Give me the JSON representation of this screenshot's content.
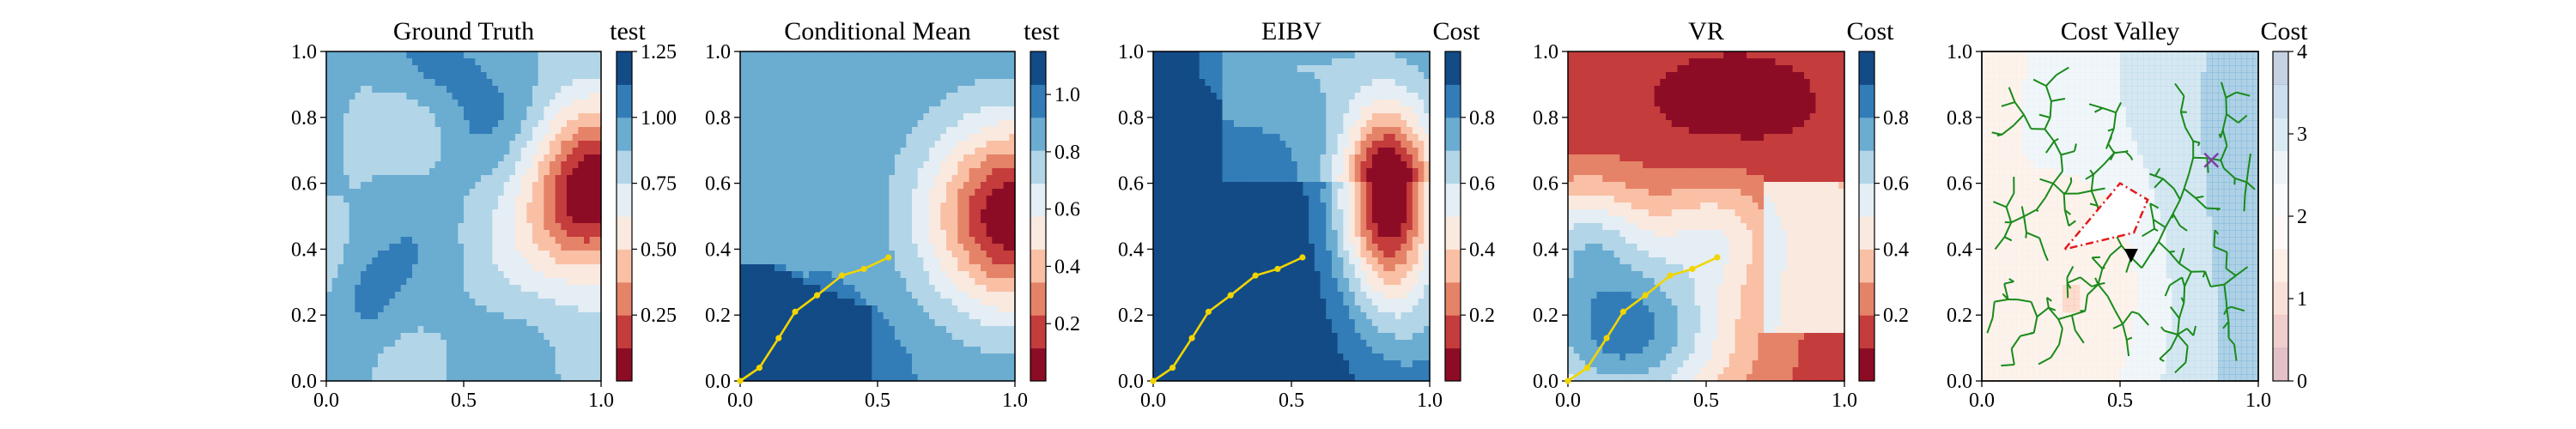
{
  "chart_data": [
    {
      "type": "heatmap",
      "title": "Ground Truth",
      "colorbar_label": "test",
      "colormap": "RdBu",
      "xlim": [
        0,
        1
      ],
      "ylim": [
        0,
        1
      ],
      "xticks": [
        "0.0",
        "0.5",
        "1.0"
      ],
      "yticks": [
        "0.0",
        "0.2",
        "0.4",
        "0.6",
        "0.8",
        "1.0"
      ],
      "clim": [
        0,
        1.25
      ],
      "cbar_ticks": [
        "0.25",
        "0.50",
        "0.75",
        "1.00",
        "1.25"
      ],
      "cbar_tick_values": [
        0.25,
        0.5,
        0.75,
        1.0,
        1.25
      ],
      "levels": 10,
      "field": "truth",
      "path": null
    },
    {
      "type": "heatmap",
      "title": "Conditional Mean",
      "colorbar_label": "test",
      "colormap": "RdBu",
      "xlim": [
        0,
        1
      ],
      "ylim": [
        0,
        1
      ],
      "xticks": [
        "0.0",
        "0.5",
        "1.0"
      ],
      "yticks": [
        "0.0",
        "0.2",
        "0.4",
        "0.6",
        "0.8",
        "1.0"
      ],
      "clim": [
        0,
        1.15
      ],
      "cbar_ticks": [
        "0.2",
        "0.4",
        "0.6",
        "0.8",
        "1.0"
      ],
      "cbar_tick_values": [
        0.2,
        0.4,
        0.6,
        0.8,
        1.0
      ],
      "levels": 10,
      "field": "mean",
      "path": [
        [
          0.0,
          0.0
        ],
        [
          0.07,
          0.04
        ],
        [
          0.14,
          0.13
        ],
        [
          0.2,
          0.21
        ],
        [
          0.28,
          0.26
        ],
        [
          0.37,
          0.32
        ],
        [
          0.45,
          0.34
        ],
        [
          0.54,
          0.375
        ]
      ]
    },
    {
      "type": "heatmap",
      "title": "EIBV",
      "colorbar_label": "Cost",
      "colormap": "RdBu",
      "xlim": [
        0,
        1
      ],
      "ylim": [
        0,
        1
      ],
      "xticks": [
        "0.0",
        "0.5",
        "1.0"
      ],
      "yticks": [
        "0.0",
        "0.2",
        "0.4",
        "0.6",
        "0.8",
        "1.0"
      ],
      "clim": [
        0,
        1.0
      ],
      "cbar_ticks": [
        "0.2",
        "0.4",
        "0.6",
        "0.8"
      ],
      "cbar_tick_values": [
        0.2,
        0.4,
        0.6,
        0.8
      ],
      "levels": 10,
      "field": "eibv",
      "path": [
        [
          0.0,
          0.0
        ],
        [
          0.07,
          0.04
        ],
        [
          0.14,
          0.13
        ],
        [
          0.2,
          0.21
        ],
        [
          0.28,
          0.26
        ],
        [
          0.37,
          0.32
        ],
        [
          0.45,
          0.34
        ],
        [
          0.54,
          0.375
        ]
      ]
    },
    {
      "type": "heatmap",
      "title": "VR",
      "colorbar_label": "Cost",
      "colormap": "RdBu",
      "xlim": [
        0,
        1
      ],
      "ylim": [
        0,
        1
      ],
      "xticks": [
        "0.0",
        "0.5",
        "1.0"
      ],
      "yticks": [
        "0.0",
        "0.2",
        "0.4",
        "0.6",
        "0.8",
        "1.0"
      ],
      "clim": [
        0,
        1.0
      ],
      "cbar_ticks": [
        "0.2",
        "0.4",
        "0.6",
        "0.8"
      ],
      "cbar_tick_values": [
        0.2,
        0.4,
        0.6,
        0.8
      ],
      "levels": 10,
      "field": "vr",
      "path": [
        [
          0.0,
          0.0
        ],
        [
          0.07,
          0.04
        ],
        [
          0.14,
          0.13
        ],
        [
          0.2,
          0.21
        ],
        [
          0.28,
          0.26
        ],
        [
          0.37,
          0.32
        ],
        [
          0.45,
          0.34
        ],
        [
          0.54,
          0.375
        ]
      ]
    },
    {
      "type": "heatmap",
      "title": "Cost Valley",
      "colorbar_label": "Cost",
      "colormap": "RdBu_alpha",
      "xlim": [
        0,
        1
      ],
      "ylim": [
        0,
        1
      ],
      "xticks": [
        "0.0",
        "0.5",
        "1.0"
      ],
      "yticks": [
        "0.0",
        "0.2",
        "0.4",
        "0.6",
        "0.8",
        "1.0"
      ],
      "clim": [
        0,
        4
      ],
      "cbar_ticks": [
        "0",
        "1",
        "2",
        "3",
        "4"
      ],
      "cbar_tick_values": [
        0,
        1,
        2,
        3,
        4
      ],
      "levels": 10,
      "field": "valley",
      "obstacle": [
        [
          0.3,
          0.4
        ],
        [
          0.5,
          0.6
        ],
        [
          0.6,
          0.55
        ],
        [
          0.55,
          0.45
        ]
      ],
      "current_location": [
        0.54,
        0.375
      ],
      "goal_location": [
        0.83,
        0.67
      ],
      "tree_color": "#1a8a1a",
      "path": null
    }
  ],
  "colors": {
    "path": "#f1d500",
    "obstacle": "#e31a1c",
    "goal_marker": "#7b3fa0",
    "current_marker": "#000000"
  }
}
